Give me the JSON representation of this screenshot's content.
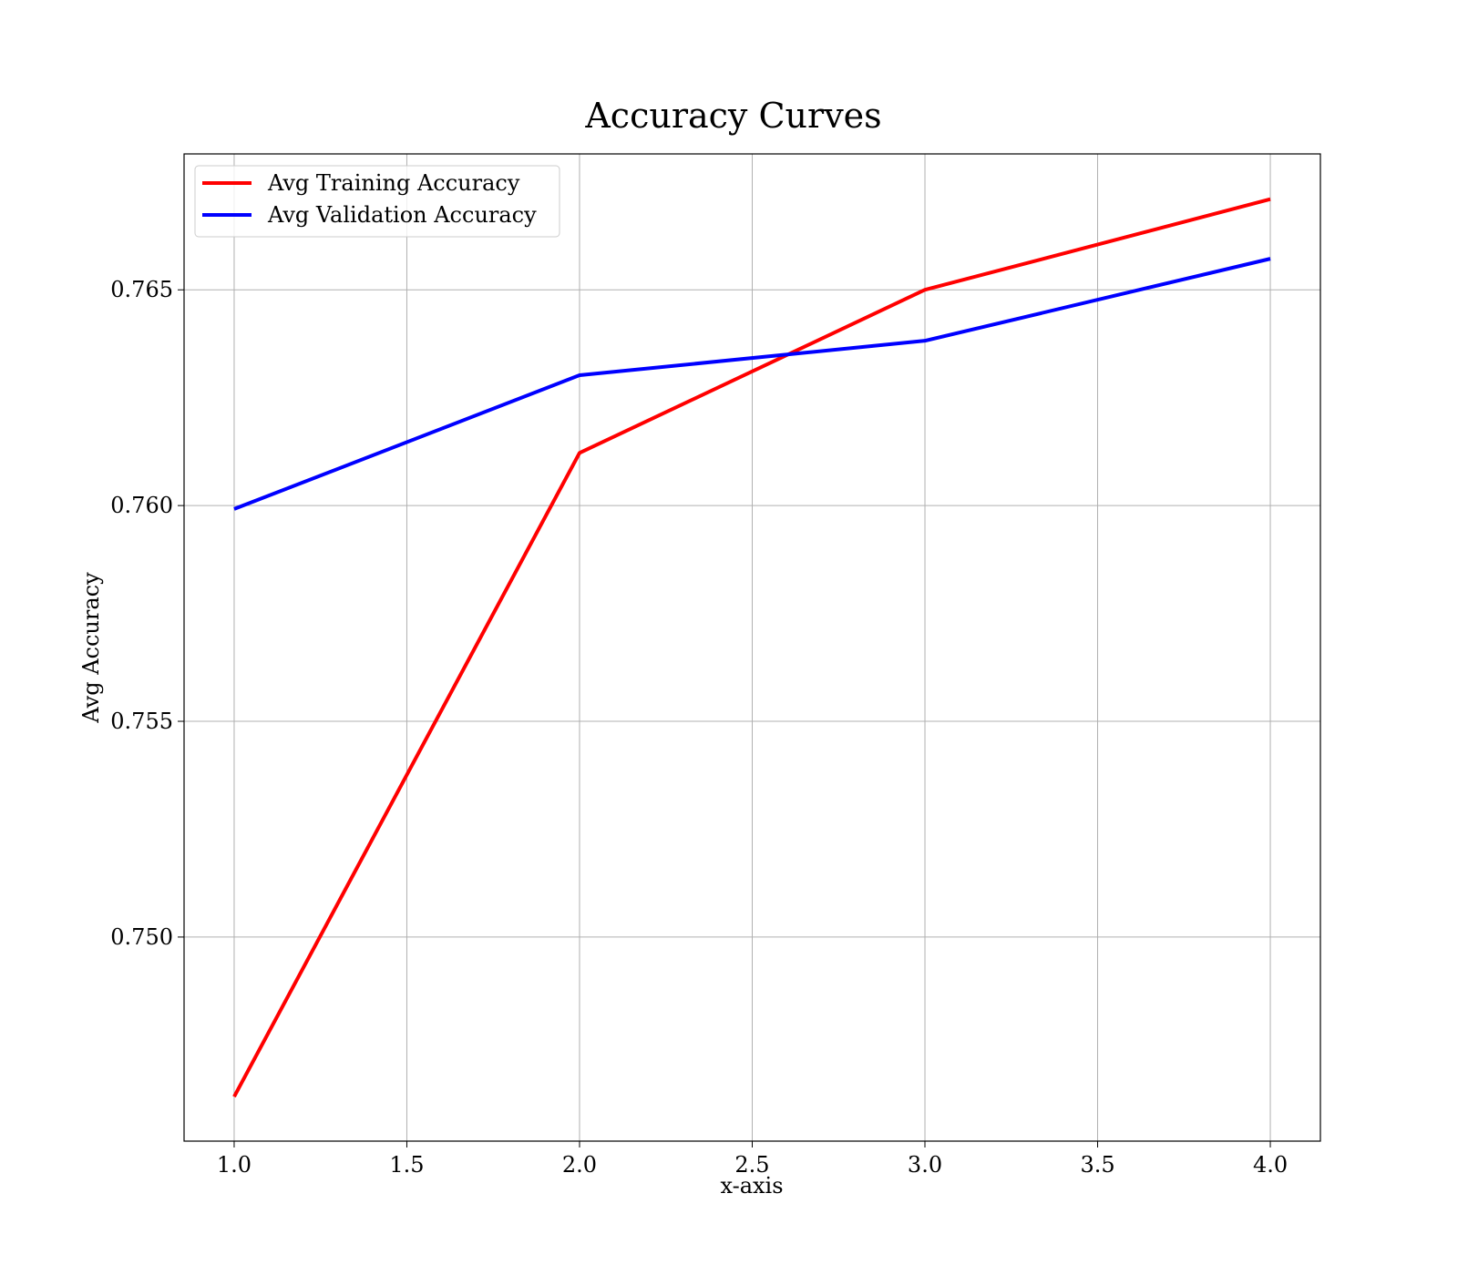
{
  "chart_data": {
    "type": "line",
    "title": "Accuracy Curves",
    "xlabel": "x-axis",
    "ylabel": "Avg Accuracy",
    "x": [
      1.0,
      2.0,
      3.0,
      4.0
    ],
    "series": [
      {
        "name": "Avg Training Accuracy",
        "color": "#ff0000",
        "values": [
          0.7463,
          0.76122,
          0.765,
          0.7671
        ]
      },
      {
        "name": "Avg Validation Accuracy",
        "color": "#0000ff",
        "values": [
          0.75992,
          0.76302,
          0.76382,
          0.76572
        ]
      }
    ],
    "xlim": [
      0.855,
      4.145
    ],
    "ylim": [
      0.74527,
      0.76815
    ],
    "xticks": [
      1.0,
      1.5,
      2.0,
      2.5,
      3.0,
      3.5,
      4.0
    ],
    "xtick_labels": [
      "1.0",
      "1.5",
      "2.0",
      "2.5",
      "3.0",
      "3.5",
      "4.0"
    ],
    "yticks": [
      0.75,
      0.755,
      0.76,
      0.765
    ],
    "ytick_labels": [
      "0.750",
      "0.755",
      "0.760",
      "0.765"
    ],
    "grid": true,
    "legend_position": "top-left"
  }
}
